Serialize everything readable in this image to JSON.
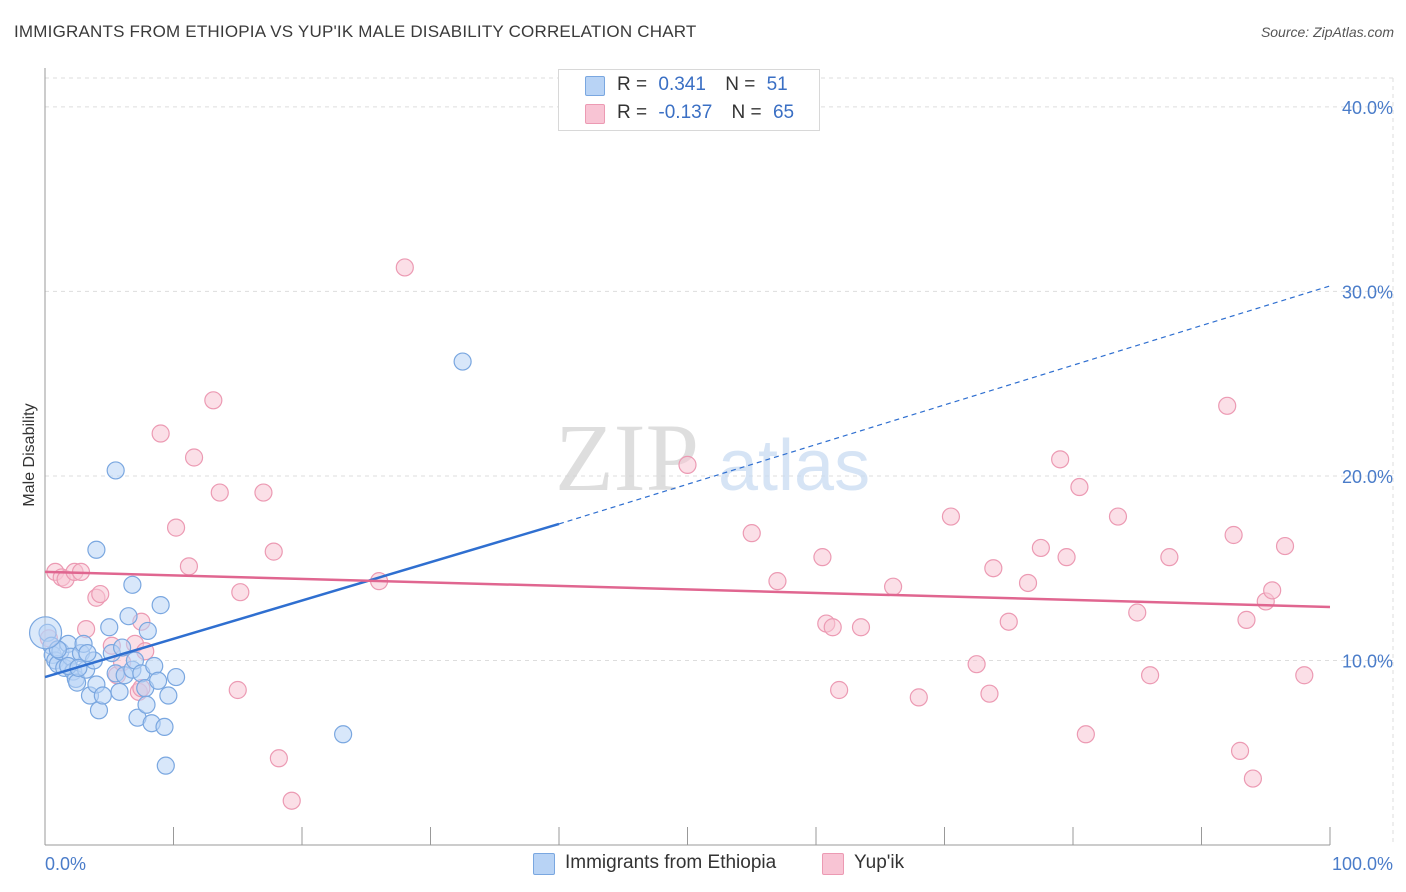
{
  "header": {
    "title": "IMMIGRANTS FROM ETHIOPIA VS YUP'IK MALE DISABILITY CORRELATION CHART",
    "source": "Source: ZipAtlas.com"
  },
  "legend": {
    "series1": {
      "r_label": "R =",
      "r_value": "0.341",
      "n_label": "N =",
      "n_value": "51"
    },
    "series2": {
      "r_label": "R =",
      "r_value": "-0.137",
      "n_label": "N =",
      "n_value": "65"
    }
  },
  "bottom_legend": {
    "series1": "Immigrants from Ethiopia",
    "series2": "Yup'ik"
  },
  "watermark": {
    "zip": "ZIP",
    "atlas": "atlas"
  },
  "colors": {
    "blue_fill": "#b8d3f5",
    "blue_stroke": "#7aa7e0",
    "blue_line": "#2f6fd0",
    "pink_fill": "#f8c4d4",
    "pink_stroke": "#ec9ab3",
    "pink_line": "#e06690",
    "tick_text": "#4a7cc9",
    "grid": "#dddddd"
  },
  "chart_data": {
    "type": "scatter",
    "title": "IMMIGRANTS FROM ETHIOPIA VS YUP'IK MALE DISABILITY CORRELATION CHART",
    "xlabel": "",
    "ylabel": "Male Disability",
    "xlim": [
      0,
      100
    ],
    "ylim": [
      0,
      42
    ],
    "x_tick_labels": [
      "0.0%",
      "100.0%"
    ],
    "y_ticks": [
      10,
      20,
      30,
      40
    ],
    "y_tick_labels": [
      "10.0%",
      "20.0%",
      "30.0%",
      "40.0%"
    ],
    "grid": true,
    "series": [
      {
        "name": "Immigrants from Ethiopia",
        "r": 0.341,
        "n": 51,
        "trend": {
          "x0": 0,
          "y0": 9.1,
          "x1": 40,
          "y1": 17.4,
          "dash_to_x": 100,
          "dash_to_y": 30.3
        },
        "points": [
          [
            0.2,
            11.5
          ],
          [
            0.5,
            10.8
          ],
          [
            0.6,
            10.3
          ],
          [
            0.8,
            10.0
          ],
          [
            1.0,
            9.8
          ],
          [
            1.2,
            10.5
          ],
          [
            1.5,
            9.6
          ],
          [
            1.8,
            10.9
          ],
          [
            2.0,
            10.2
          ],
          [
            2.2,
            9.4
          ],
          [
            2.4,
            9.0
          ],
          [
            2.5,
            8.8
          ],
          [
            2.8,
            10.4
          ],
          [
            3.0,
            10.9
          ],
          [
            3.2,
            9.5
          ],
          [
            3.5,
            8.1
          ],
          [
            3.8,
            10.0
          ],
          [
            4.0,
            8.7
          ],
          [
            4.0,
            16.0
          ],
          [
            4.2,
            7.3
          ],
          [
            4.5,
            8.1
          ],
          [
            5.0,
            11.8
          ],
          [
            5.2,
            10.4
          ],
          [
            5.5,
            9.3
          ],
          [
            5.5,
            20.3
          ],
          [
            5.8,
            8.3
          ],
          [
            6.0,
            10.7
          ],
          [
            6.2,
            9.2
          ],
          [
            6.5,
            12.4
          ],
          [
            6.8,
            9.5
          ],
          [
            6.8,
            14.1
          ],
          [
            7.0,
            10.0
          ],
          [
            7.2,
            6.9
          ],
          [
            7.5,
            9.3
          ],
          [
            7.8,
            8.5
          ],
          [
            7.9,
            7.6
          ],
          [
            8.0,
            11.6
          ],
          [
            8.3,
            6.6
          ],
          [
            8.5,
            9.7
          ],
          [
            8.8,
            8.9
          ],
          [
            9.0,
            13.0
          ],
          [
            9.3,
            6.4
          ],
          [
            9.4,
            4.3
          ],
          [
            9.6,
            8.1
          ],
          [
            10.2,
            9.1
          ],
          [
            23.2,
            6.0
          ],
          [
            32.5,
            26.2
          ],
          [
            1.0,
            10.6
          ],
          [
            1.8,
            9.7
          ],
          [
            3.3,
            10.4
          ],
          [
            2.6,
            9.6
          ]
        ]
      },
      {
        "name": "Yup'ik",
        "r": -0.137,
        "n": 65,
        "trend": {
          "x0": 0,
          "y0": 14.8,
          "x1": 100,
          "y1": 12.9
        },
        "points": [
          [
            0.3,
            11.2
          ],
          [
            0.8,
            14.8
          ],
          [
            1.3,
            14.5
          ],
          [
            1.6,
            14.4
          ],
          [
            2.3,
            14.8
          ],
          [
            2.8,
            14.8
          ],
          [
            3.2,
            11.7
          ],
          [
            4.0,
            13.4
          ],
          [
            4.3,
            13.6
          ],
          [
            5.2,
            10.8
          ],
          [
            5.6,
            9.2
          ],
          [
            6.0,
            9.9
          ],
          [
            7.0,
            10.9
          ],
          [
            7.3,
            8.3
          ],
          [
            7.5,
            8.5
          ],
          [
            7.5,
            12.1
          ],
          [
            7.8,
            10.5
          ],
          [
            9.0,
            22.3
          ],
          [
            10.2,
            17.2
          ],
          [
            11.2,
            15.1
          ],
          [
            11.6,
            21.0
          ],
          [
            13.1,
            24.1
          ],
          [
            13.6,
            19.1
          ],
          [
            15.0,
            8.4
          ],
          [
            15.2,
            13.7
          ],
          [
            17.0,
            19.1
          ],
          [
            17.8,
            15.9
          ],
          [
            18.2,
            4.7
          ],
          [
            19.2,
            2.4
          ],
          [
            26.0,
            14.3
          ],
          [
            28.0,
            31.3
          ],
          [
            50.0,
            20.6
          ],
          [
            55.0,
            16.9
          ],
          [
            57.0,
            14.3
          ],
          [
            60.5,
            15.6
          ],
          [
            60.8,
            12.0
          ],
          [
            61.3,
            11.8
          ],
          [
            61.8,
            8.4
          ],
          [
            63.5,
            11.8
          ],
          [
            66.0,
            14.0
          ],
          [
            68.0,
            8.0
          ],
          [
            70.5,
            17.8
          ],
          [
            72.5,
            9.8
          ],
          [
            73.5,
            8.2
          ],
          [
            73.8,
            15.0
          ],
          [
            75.0,
            12.1
          ],
          [
            76.5,
            14.2
          ],
          [
            77.5,
            16.1
          ],
          [
            79.0,
            20.9
          ],
          [
            79.5,
            15.6
          ],
          [
            80.5,
            19.4
          ],
          [
            81.0,
            6.0
          ],
          [
            83.5,
            17.8
          ],
          [
            85.0,
            12.6
          ],
          [
            86.0,
            9.2
          ],
          [
            87.5,
            15.6
          ],
          [
            92.0,
            23.8
          ],
          [
            92.5,
            16.8
          ],
          [
            93.0,
            5.1
          ],
          [
            93.5,
            12.2
          ],
          [
            94.0,
            3.6
          ],
          [
            95.0,
            13.2
          ],
          [
            95.5,
            13.8
          ],
          [
            96.5,
            16.2
          ],
          [
            98.0,
            9.2
          ]
        ]
      }
    ]
  }
}
